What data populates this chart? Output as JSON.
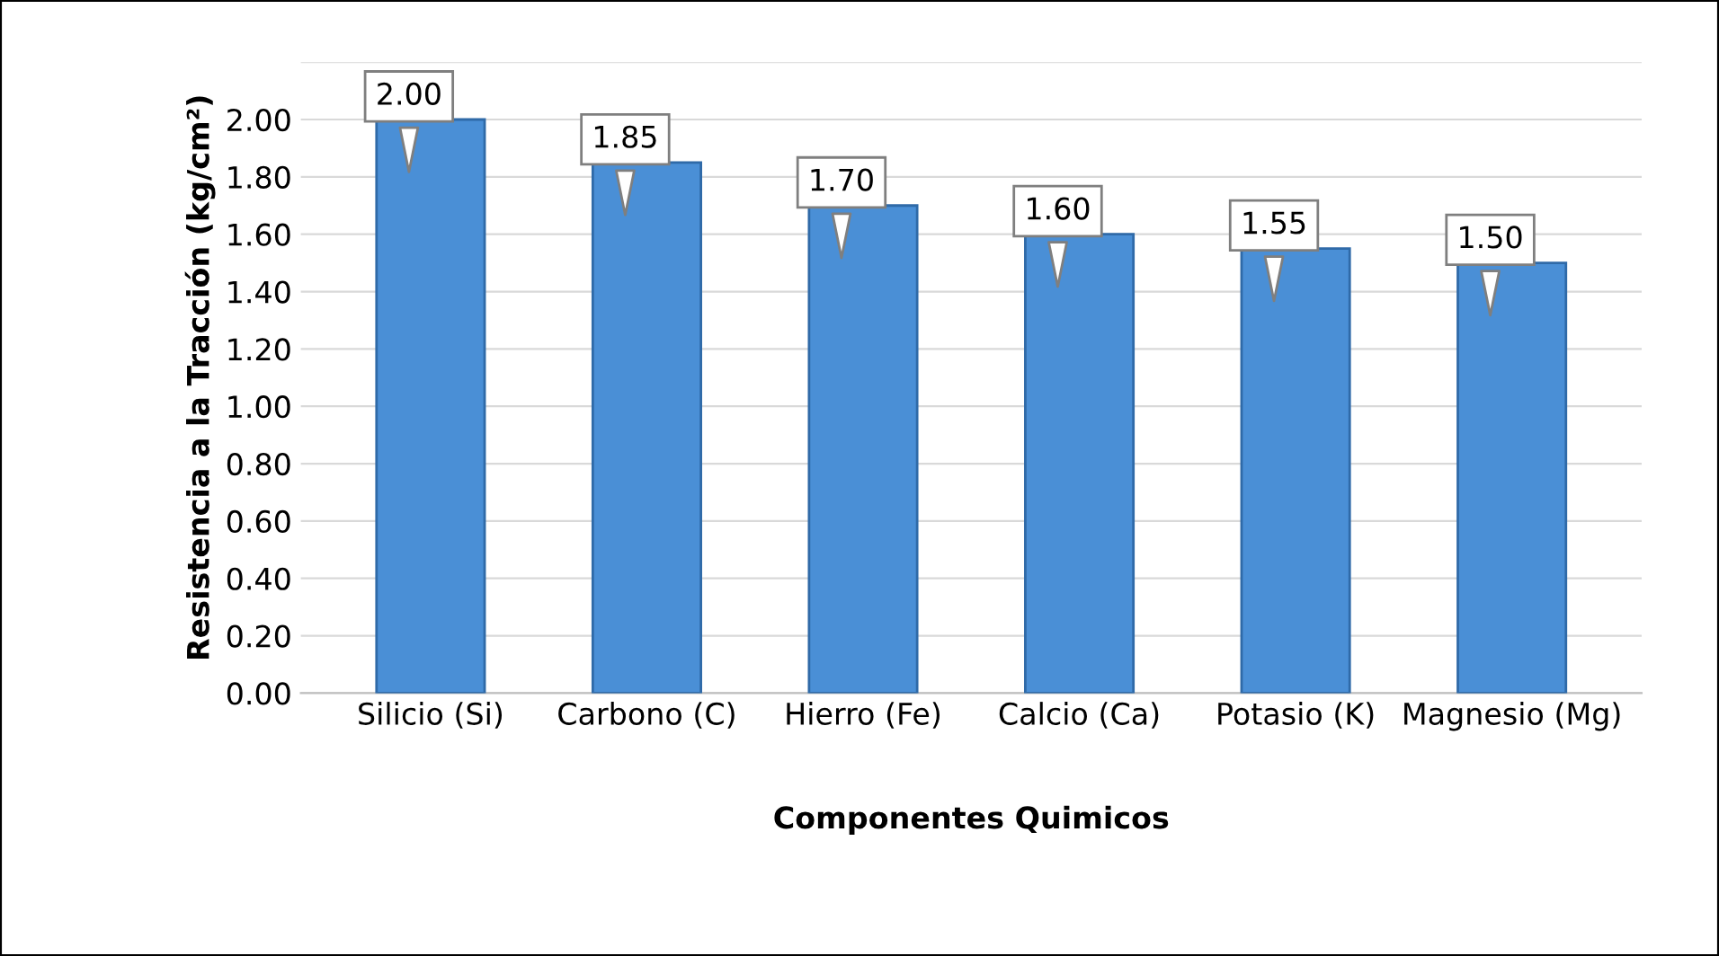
{
  "chart_data": {
    "type": "bar",
    "xlabel": "Componentes Quimicos",
    "ylabel": "Resistencia a la Tracción (kg/cm²)",
    "categories": [
      "Silicio (Si)",
      "Carbono (C)",
      "Hierro (Fe)",
      "Calcio (Ca)",
      "Potasio (K)",
      "Magnesio (Mg)"
    ],
    "values": [
      2.0,
      1.85,
      1.7,
      1.6,
      1.55,
      1.5
    ],
    "value_labels": [
      "2.00",
      "1.85",
      "1.70",
      "1.60",
      "1.55",
      "1.50"
    ],
    "color": "#4a8fd6",
    "ylim": [
      0,
      2.2
    ],
    "yticks": [
      {
        "value": 0,
        "label": "0.00"
      },
      {
        "value": 0.2,
        "label": "0.20"
      },
      {
        "value": 0.4,
        "label": "0.40"
      },
      {
        "value": 0.6,
        "label": "0.60"
      },
      {
        "value": 0.8,
        "label": "0.80"
      },
      {
        "value": 1.0,
        "label": "1.00"
      },
      {
        "value": 1.2,
        "label": "1.20"
      },
      {
        "value": 1.4,
        "label": "1.40"
      },
      {
        "value": 1.6,
        "label": "1.60"
      },
      {
        "value": 1.8,
        "label": "1.80"
      },
      {
        "value": 2.0,
        "label": "2.00"
      },
      {
        "value": 2.2,
        "label": null
      }
    ],
    "grid": "y"
  }
}
